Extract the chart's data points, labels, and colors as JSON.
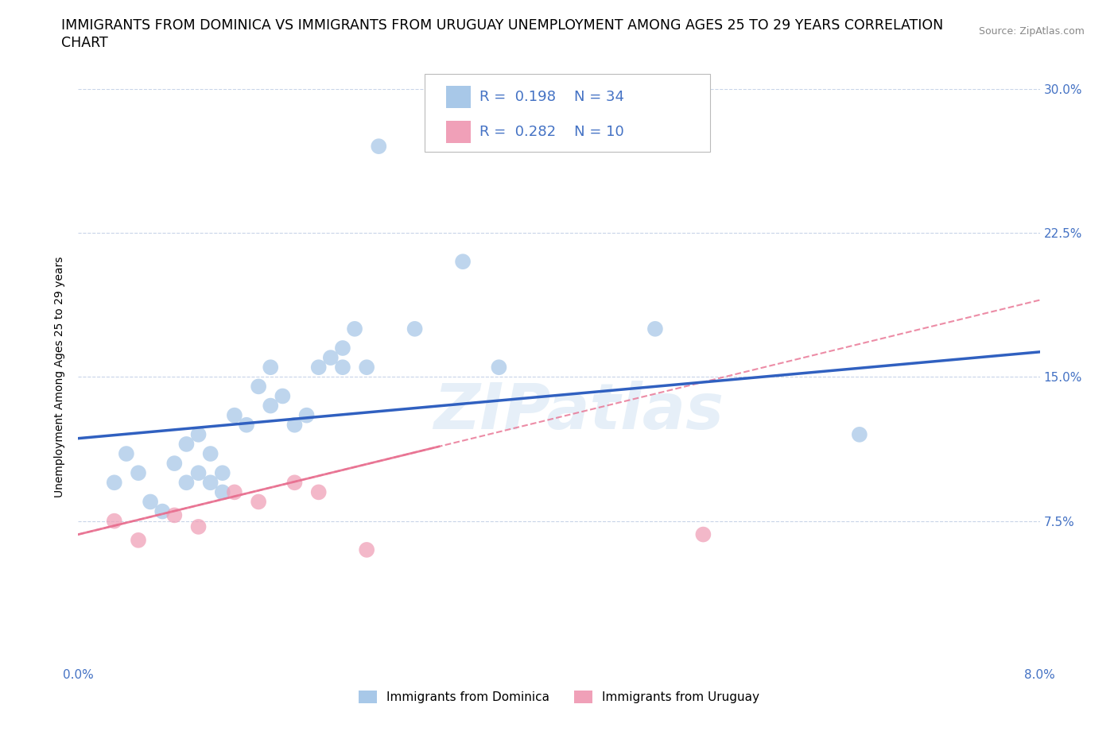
{
  "title_line1": "IMMIGRANTS FROM DOMINICA VS IMMIGRANTS FROM URUGUAY UNEMPLOYMENT AMONG AGES 25 TO 29 YEARS CORRELATION",
  "title_line2": "CHART",
  "source_text": "Source: ZipAtlas.com",
  "ylabel": "Unemployment Among Ages 25 to 29 years",
  "xlim": [
    0.0,
    0.08
  ],
  "ylim": [
    0.0,
    0.3
  ],
  "xticks": [
    0.0,
    0.02,
    0.04,
    0.06,
    0.08
  ],
  "xtick_labels": [
    "0.0%",
    "",
    "",
    "",
    "8.0%"
  ],
  "ytick_labels_left": [
    "",
    "",
    "",
    "",
    ""
  ],
  "ytick_labels_right": [
    "",
    "7.5%",
    "15.0%",
    "22.5%",
    "30.0%"
  ],
  "yticks": [
    0.0,
    0.075,
    0.15,
    0.225,
    0.3
  ],
  "watermark": "ZIPatlas",
  "dominica_color": "#a8c8e8",
  "uruguay_color": "#f0a0b8",
  "dominica_line_color": "#3060c0",
  "uruguay_line_color": "#e87090",
  "legend_R_dominica": "0.198",
  "legend_N_dominica": "34",
  "legend_R_uruguay": "0.282",
  "legend_N_uruguay": "10",
  "dominica_scatter_x": [
    0.003,
    0.004,
    0.005,
    0.006,
    0.007,
    0.008,
    0.009,
    0.009,
    0.01,
    0.01,
    0.011,
    0.011,
    0.012,
    0.012,
    0.013,
    0.014,
    0.015,
    0.016,
    0.016,
    0.017,
    0.018,
    0.019,
    0.02,
    0.021,
    0.022,
    0.022,
    0.023,
    0.024,
    0.025,
    0.028,
    0.032,
    0.035,
    0.048,
    0.065
  ],
  "dominica_scatter_y": [
    0.095,
    0.11,
    0.1,
    0.085,
    0.08,
    0.105,
    0.095,
    0.115,
    0.1,
    0.12,
    0.095,
    0.11,
    0.09,
    0.1,
    0.13,
    0.125,
    0.145,
    0.135,
    0.155,
    0.14,
    0.125,
    0.13,
    0.155,
    0.16,
    0.155,
    0.165,
    0.175,
    0.155,
    0.27,
    0.175,
    0.21,
    0.155,
    0.175,
    0.12
  ],
  "uruguay_scatter_x": [
    0.003,
    0.005,
    0.008,
    0.01,
    0.013,
    0.015,
    0.018,
    0.02,
    0.024,
    0.052
  ],
  "uruguay_scatter_y": [
    0.075,
    0.065,
    0.078,
    0.072,
    0.09,
    0.085,
    0.095,
    0.09,
    0.06,
    0.068
  ],
  "dominica_trend_x": [
    0.0,
    0.08
  ],
  "dominica_trend_y": [
    0.118,
    0.163
  ],
  "uruguay_trend_x": [
    0.0,
    0.08
  ],
  "uruguay_trend_y": [
    0.068,
    0.19
  ],
  "bg_color": "#ffffff",
  "grid_color": "#c8d4e8",
  "label_color": "#4472c4",
  "title_fontsize": 12.5,
  "axis_label_fontsize": 10,
  "tick_label_fontsize": 11
}
